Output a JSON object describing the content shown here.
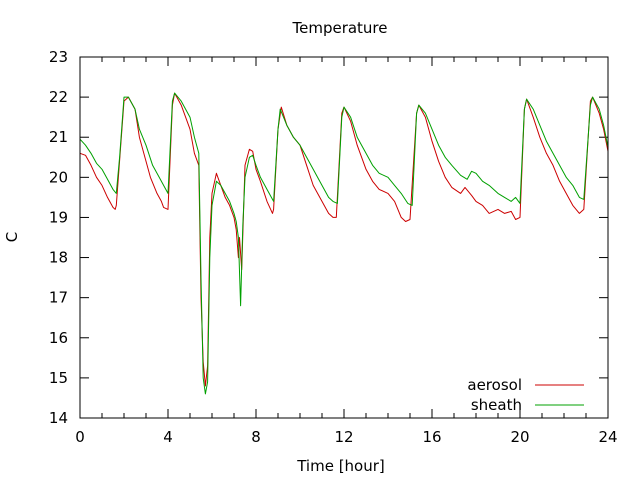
{
  "chart_data": {
    "type": "line",
    "title": "Temperature",
    "xlabel": "Time [hour]",
    "ylabel": "C",
    "xlim": [
      0,
      24
    ],
    "ylim": [
      14,
      23
    ],
    "x_ticks": [
      0,
      4,
      8,
      12,
      16,
      20,
      24
    ],
    "x_tick_labels": [
      "0",
      "4",
      "8",
      "12",
      "16",
      "20",
      "24"
    ],
    "y_ticks": [
      14,
      15,
      16,
      17,
      18,
      19,
      20,
      21,
      22,
      23
    ],
    "y_tick_labels": [
      "14",
      "15",
      "16",
      "17",
      "18",
      "19",
      "20",
      "21",
      "22",
      "23"
    ],
    "x_minor_step": 1,
    "grid": false,
    "legend_position": "bottom-right",
    "series": [
      {
        "name": "aerosol",
        "color": "#cc0000",
        "points": [
          [
            0,
            20.6
          ],
          [
            0.25,
            20.55
          ],
          [
            0.5,
            20.3
          ],
          [
            0.75,
            20.0
          ],
          [
            1.0,
            19.8
          ],
          [
            1.25,
            19.5
          ],
          [
            1.5,
            19.25
          ],
          [
            1.6,
            19.2
          ],
          [
            1.65,
            19.3
          ],
          [
            2.0,
            21.9
          ],
          [
            2.2,
            22.0
          ],
          [
            2.5,
            21.7
          ],
          [
            2.7,
            21.0
          ],
          [
            3.0,
            20.4
          ],
          [
            3.2,
            20.0
          ],
          [
            3.5,
            19.6
          ],
          [
            3.7,
            19.4
          ],
          [
            3.8,
            19.25
          ],
          [
            4.0,
            19.2
          ],
          [
            4.2,
            21.8
          ],
          [
            4.3,
            22.1
          ],
          [
            4.6,
            21.8
          ],
          [
            5.0,
            21.2
          ],
          [
            5.2,
            20.6
          ],
          [
            5.4,
            20.3
          ],
          [
            5.5,
            17.0
          ],
          [
            5.6,
            15.4
          ],
          [
            5.7,
            14.8
          ],
          [
            5.8,
            15.3
          ],
          [
            5.9,
            18.5
          ],
          [
            6.0,
            19.6
          ],
          [
            6.2,
            20.1
          ],
          [
            6.4,
            19.8
          ],
          [
            6.6,
            19.5
          ],
          [
            6.8,
            19.3
          ],
          [
            7.0,
            19.0
          ],
          [
            7.1,
            18.7
          ],
          [
            7.2,
            18.0
          ],
          [
            7.25,
            18.5
          ],
          [
            7.35,
            17.7
          ],
          [
            7.5,
            20.3
          ],
          [
            7.7,
            20.7
          ],
          [
            7.85,
            20.65
          ],
          [
            8.0,
            20.2
          ],
          [
            8.2,
            19.9
          ],
          [
            8.5,
            19.4
          ],
          [
            8.75,
            19.1
          ],
          [
            8.8,
            19.2
          ],
          [
            9.0,
            21.2
          ],
          [
            9.15,
            21.75
          ],
          [
            9.4,
            21.3
          ],
          [
            9.7,
            21.0
          ],
          [
            10.0,
            20.8
          ],
          [
            10.3,
            20.3
          ],
          [
            10.6,
            19.8
          ],
          [
            11.0,
            19.4
          ],
          [
            11.3,
            19.1
          ],
          [
            11.5,
            19.0
          ],
          [
            11.65,
            19.0
          ],
          [
            11.9,
            21.6
          ],
          [
            12.0,
            21.75
          ],
          [
            12.3,
            21.4
          ],
          [
            12.6,
            20.8
          ],
          [
            13.0,
            20.2
          ],
          [
            13.3,
            19.9
          ],
          [
            13.6,
            19.7
          ],
          [
            14.0,
            19.6
          ],
          [
            14.3,
            19.4
          ],
          [
            14.6,
            19.0
          ],
          [
            14.8,
            18.9
          ],
          [
            15.0,
            18.95
          ],
          [
            15.3,
            21.6
          ],
          [
            15.4,
            21.8
          ],
          [
            15.7,
            21.5
          ],
          [
            16.0,
            20.9
          ],
          [
            16.3,
            20.4
          ],
          [
            16.6,
            20.0
          ],
          [
            16.9,
            19.75
          ],
          [
            17.3,
            19.6
          ],
          [
            17.5,
            19.75
          ],
          [
            17.8,
            19.55
          ],
          [
            18.0,
            19.4
          ],
          [
            18.3,
            19.3
          ],
          [
            18.6,
            19.1
          ],
          [
            19.0,
            19.2
          ],
          [
            19.3,
            19.1
          ],
          [
            19.6,
            19.15
          ],
          [
            19.8,
            18.95
          ],
          [
            20.0,
            19.0
          ],
          [
            20.2,
            21.7
          ],
          [
            20.3,
            21.95
          ],
          [
            20.6,
            21.5
          ],
          [
            20.9,
            21.0
          ],
          [
            21.2,
            20.6
          ],
          [
            21.5,
            20.3
          ],
          [
            21.8,
            19.9
          ],
          [
            22.1,
            19.6
          ],
          [
            22.4,
            19.3
          ],
          [
            22.7,
            19.1
          ],
          [
            22.9,
            19.2
          ],
          [
            23.2,
            21.9
          ],
          [
            23.3,
            22.0
          ],
          [
            23.6,
            21.6
          ],
          [
            23.8,
            21.2
          ],
          [
            24.0,
            20.65
          ]
        ]
      },
      {
        "name": "sheath",
        "color": "#00a000",
        "points": [
          [
            0,
            20.95
          ],
          [
            0.25,
            20.8
          ],
          [
            0.5,
            20.6
          ],
          [
            0.75,
            20.35
          ],
          [
            1.0,
            20.2
          ],
          [
            1.25,
            19.95
          ],
          [
            1.5,
            19.7
          ],
          [
            1.65,
            19.6
          ],
          [
            1.8,
            20.5
          ],
          [
            2.0,
            22.0
          ],
          [
            2.2,
            22.0
          ],
          [
            2.5,
            21.7
          ],
          [
            2.7,
            21.2
          ],
          [
            3.0,
            20.8
          ],
          [
            3.3,
            20.3
          ],
          [
            3.6,
            20.0
          ],
          [
            3.9,
            19.7
          ],
          [
            4.0,
            19.6
          ],
          [
            4.2,
            21.9
          ],
          [
            4.3,
            22.1
          ],
          [
            4.6,
            21.9
          ],
          [
            5.0,
            21.5
          ],
          [
            5.2,
            21.0
          ],
          [
            5.4,
            20.6
          ],
          [
            5.5,
            17.5
          ],
          [
            5.6,
            15.0
          ],
          [
            5.7,
            14.6
          ],
          [
            5.8,
            14.9
          ],
          [
            5.9,
            18.0
          ],
          [
            6.0,
            19.3
          ],
          [
            6.2,
            19.9
          ],
          [
            6.4,
            19.8
          ],
          [
            6.6,
            19.6
          ],
          [
            6.8,
            19.4
          ],
          [
            7.0,
            19.1
          ],
          [
            7.1,
            18.9
          ],
          [
            7.2,
            18.5
          ],
          [
            7.3,
            16.8
          ],
          [
            7.4,
            18.8
          ],
          [
            7.5,
            20.0
          ],
          [
            7.7,
            20.5
          ],
          [
            7.85,
            20.55
          ],
          [
            8.0,
            20.3
          ],
          [
            8.2,
            20.0
          ],
          [
            8.5,
            19.7
          ],
          [
            8.8,
            19.4
          ],
          [
            9.0,
            21.2
          ],
          [
            9.1,
            21.7
          ],
          [
            9.4,
            21.3
          ],
          [
            9.7,
            21.0
          ],
          [
            10.0,
            20.8
          ],
          [
            10.3,
            20.5
          ],
          [
            10.6,
            20.2
          ],
          [
            11.0,
            19.8
          ],
          [
            11.3,
            19.5
          ],
          [
            11.5,
            19.4
          ],
          [
            11.7,
            19.35
          ],
          [
            11.9,
            21.5
          ],
          [
            12.0,
            21.75
          ],
          [
            12.3,
            21.5
          ],
          [
            12.6,
            21.0
          ],
          [
            13.0,
            20.6
          ],
          [
            13.3,
            20.3
          ],
          [
            13.6,
            20.1
          ],
          [
            14.0,
            20.0
          ],
          [
            14.3,
            19.8
          ],
          [
            14.6,
            19.6
          ],
          [
            14.9,
            19.35
          ],
          [
            15.1,
            19.3
          ],
          [
            15.3,
            21.6
          ],
          [
            15.4,
            21.8
          ],
          [
            15.7,
            21.6
          ],
          [
            16.0,
            21.2
          ],
          [
            16.3,
            20.8
          ],
          [
            16.6,
            20.5
          ],
          [
            16.9,
            20.3
          ],
          [
            17.3,
            20.05
          ],
          [
            17.6,
            19.95
          ],
          [
            17.8,
            20.15
          ],
          [
            18.0,
            20.1
          ],
          [
            18.3,
            19.9
          ],
          [
            18.6,
            19.8
          ],
          [
            19.0,
            19.6
          ],
          [
            19.3,
            19.5
          ],
          [
            19.6,
            19.4
          ],
          [
            19.8,
            19.5
          ],
          [
            20.0,
            19.35
          ],
          [
            20.2,
            21.7
          ],
          [
            20.3,
            21.95
          ],
          [
            20.6,
            21.7
          ],
          [
            20.9,
            21.3
          ],
          [
            21.2,
            20.9
          ],
          [
            21.5,
            20.6
          ],
          [
            21.8,
            20.3
          ],
          [
            22.1,
            20.0
          ],
          [
            22.4,
            19.8
          ],
          [
            22.7,
            19.5
          ],
          [
            22.9,
            19.45
          ],
          [
            23.2,
            21.8
          ],
          [
            23.3,
            22.0
          ],
          [
            23.6,
            21.7
          ],
          [
            23.8,
            21.3
          ],
          [
            24.0,
            20.75
          ]
        ]
      }
    ]
  }
}
